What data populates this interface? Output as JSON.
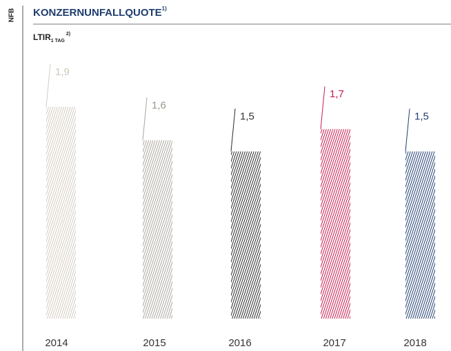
{
  "side_label": "NFB",
  "chart_data": {
    "type": "bar",
    "title": "KONZERNUNFALLQUOTE",
    "title_note": "1)",
    "subtitle": "LTIR",
    "subtitle_sub": "1 TAG",
    "subtitle_note": "2)",
    "categories": [
      "2014",
      "2015",
      "2016",
      "2017",
      "2018"
    ],
    "values": [
      1.9,
      1.6,
      1.5,
      1.7,
      1.5
    ],
    "value_labels": [
      "1,9",
      "1,6",
      "1,5",
      "1,7",
      "1,5"
    ],
    "colors": [
      "#d3cbbf",
      "#aaa59f",
      "#2a2a2a",
      "#c8174f",
      "#1f3d6e"
    ],
    "label_colors": [
      "#cfc7bb",
      "#9b968f",
      "#333333",
      "#c8174f",
      "#1f3d6e"
    ]
  }
}
